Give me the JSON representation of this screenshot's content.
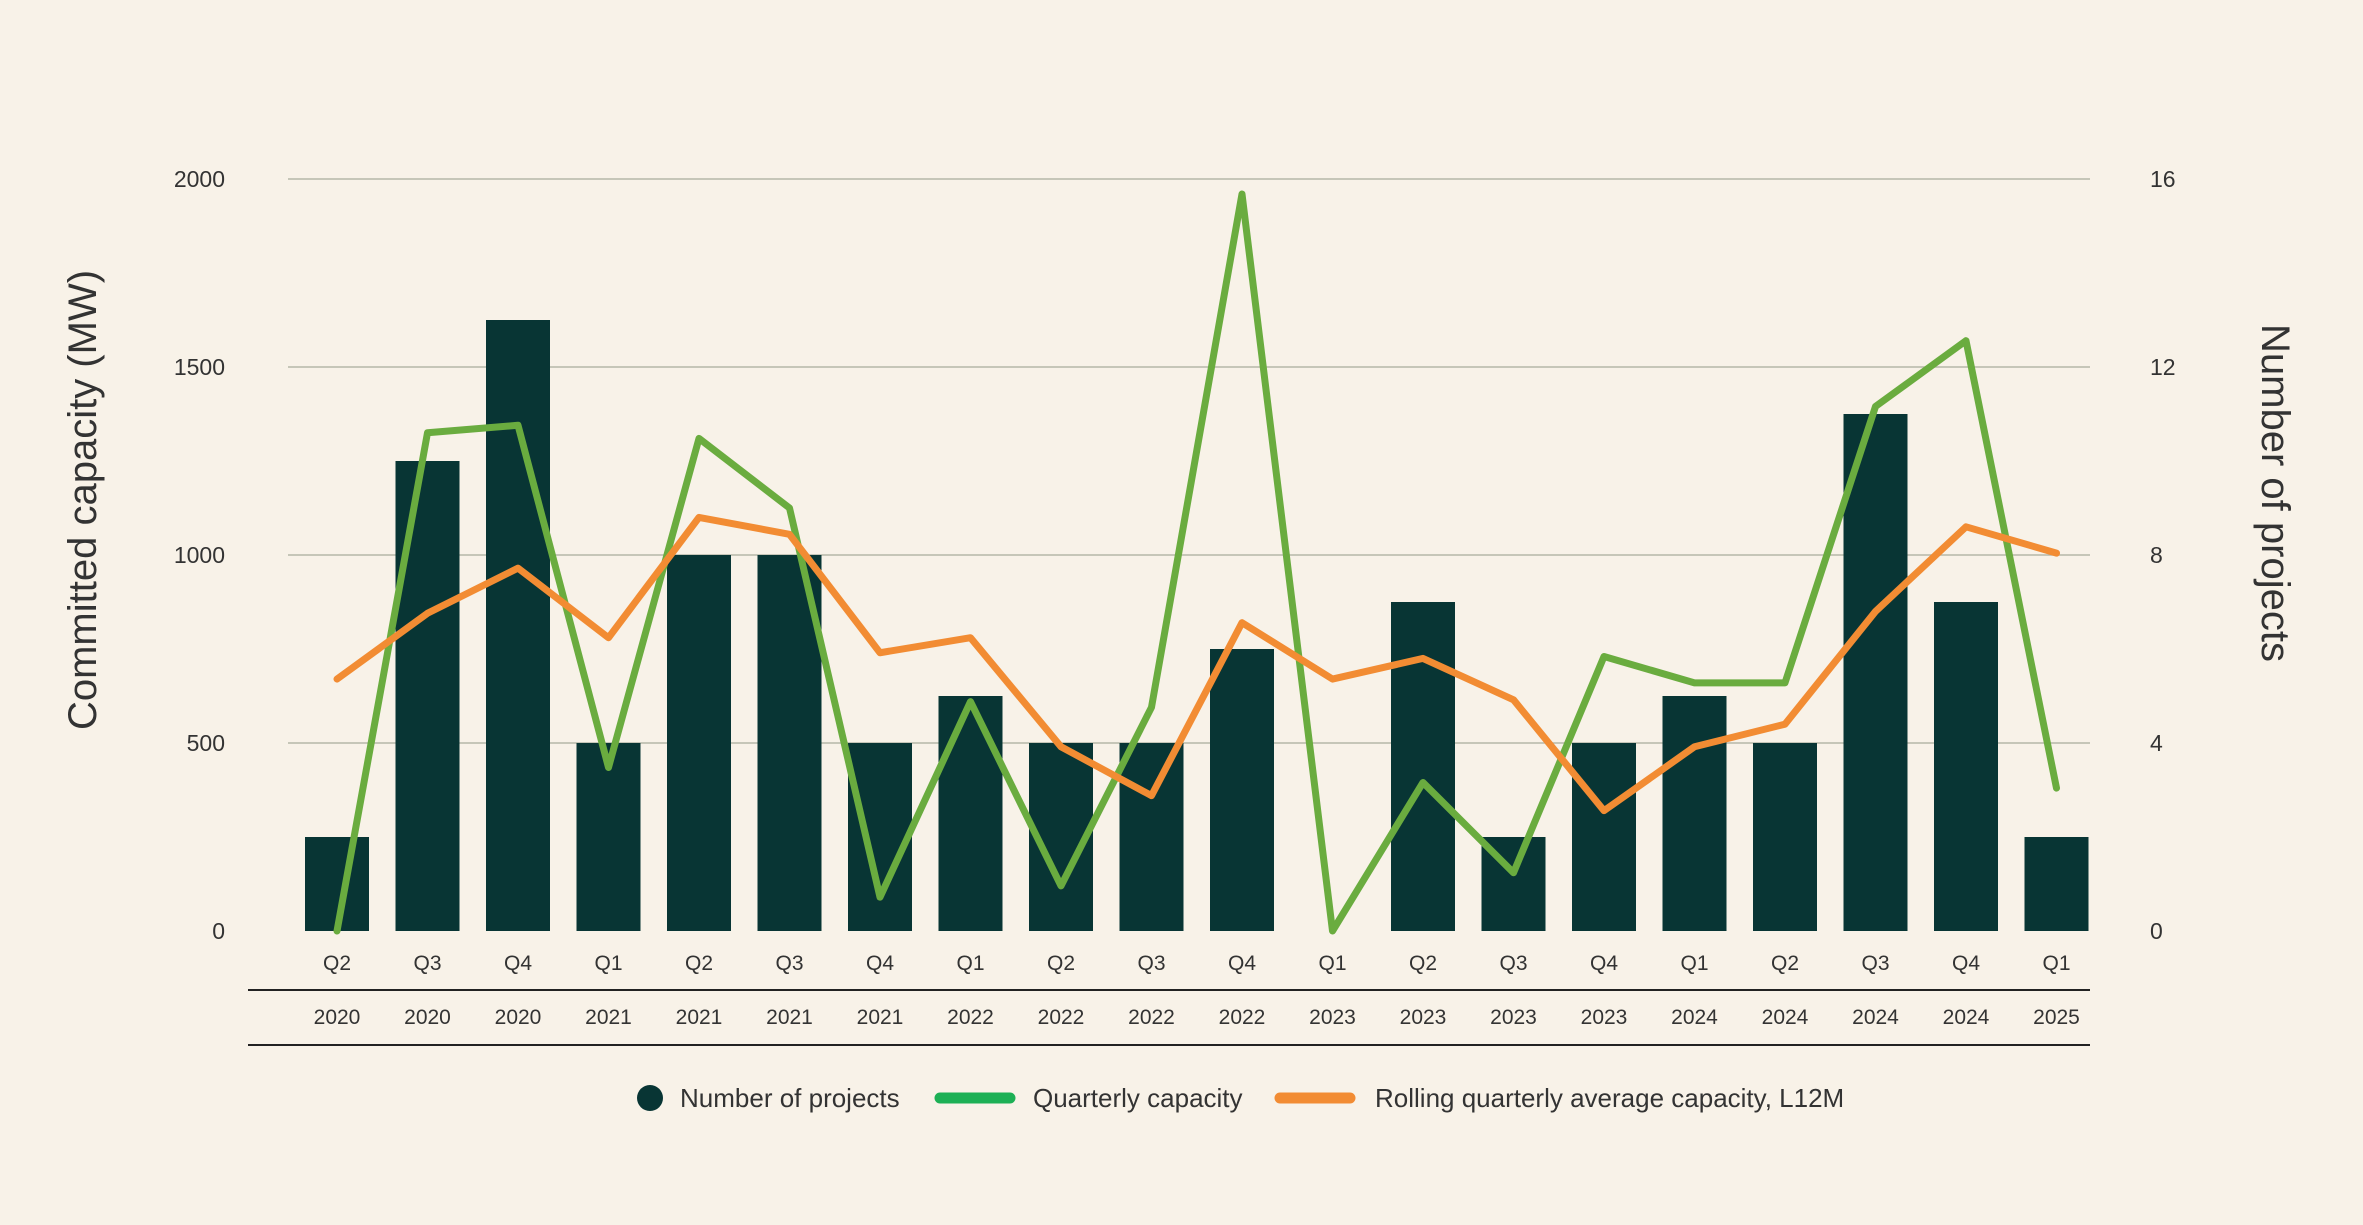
{
  "chart_data": {
    "type": "bar",
    "quarters": [
      "Q2",
      "Q3",
      "Q4",
      "Q1",
      "Q2",
      "Q3",
      "Q4",
      "Q1",
      "Q2",
      "Q3",
      "Q4",
      "Q1",
      "Q2",
      "Q3",
      "Q4",
      "Q1",
      "Q2",
      "Q3",
      "Q4",
      "Q1"
    ],
    "years": [
      "2020",
      "2020",
      "2020",
      "2021",
      "2021",
      "2021",
      "2021",
      "2022",
      "2022",
      "2022",
      "2022",
      "2023",
      "2023",
      "2023",
      "2023",
      "2024",
      "2024",
      "2024",
      "2024",
      "2025"
    ],
    "ylabel_left": "Committed capacity (MW)",
    "ylabel_right": "Number of projects",
    "ylim_left": [
      0,
      2000
    ],
    "ylim_right": [
      0,
      16
    ],
    "yticks_left": [
      "0",
      "500",
      "1000",
      "1500",
      "2000"
    ],
    "yticks_right": [
      "0",
      "4",
      "8",
      "12",
      "16"
    ],
    "grid": true,
    "legend_position": "bottom",
    "series": [
      {
        "name": "Number of projects",
        "kind": "bar",
        "axis": "right",
        "color": "#083534",
        "values": [
          2,
          10,
          13,
          4,
          8,
          8,
          4,
          5,
          4,
          4,
          6,
          0,
          7,
          2,
          4,
          5,
          4,
          11,
          7,
          2
        ]
      },
      {
        "name": "Quarterly capacity",
        "kind": "line",
        "axis": "left",
        "color": "#6aac3f",
        "legend_color": "#1db055",
        "values": [
          0,
          1325,
          1345,
          435,
          1310,
          1125,
          90,
          610,
          120,
          595,
          1960,
          0,
          395,
          155,
          730,
          660,
          660,
          1395,
          1570,
          380
        ]
      },
      {
        "name": "Rolling quarterly average capacity, L12M",
        "kind": "line",
        "axis": "left",
        "color": "#f28c33",
        "values": [
          670,
          845,
          965,
          780,
          1100,
          1055,
          740,
          780,
          490,
          360,
          820,
          670,
          725,
          615,
          320,
          490,
          550,
          850,
          1075,
          1005
        ]
      }
    ]
  }
}
